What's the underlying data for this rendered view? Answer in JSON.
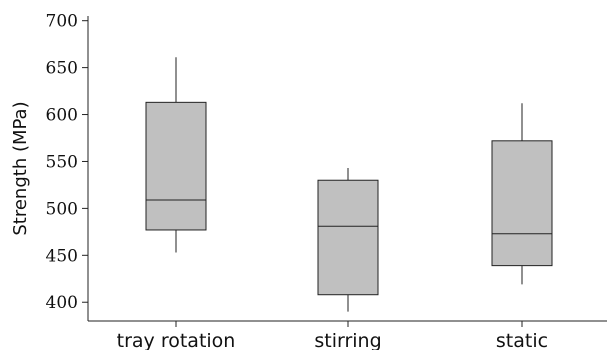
{
  "chart_data": {
    "type": "box",
    "ylabel": "Strength (MPa)",
    "xlabel": "",
    "ylim": [
      380,
      705
    ],
    "yticks": [
      400,
      450,
      500,
      550,
      600,
      650,
      700
    ],
    "grid": false,
    "categories": [
      "tray rotation",
      "stirring",
      "static"
    ],
    "boxes": [
      {
        "category": "tray rotation",
        "whisker_low": 453,
        "q1": 477,
        "median": 509,
        "q3": 613,
        "whisker_high": 661
      },
      {
        "category": "stirring",
        "whisker_low": 390,
        "q1": 408,
        "median": 481,
        "q3": 530,
        "whisker_high": 543
      },
      {
        "category": "static",
        "whisker_low": 419,
        "q1": 439,
        "median": 473,
        "q3": 572,
        "whisker_high": 612
      }
    ],
    "colors": {
      "box_fill": "#c0c0c0",
      "line": "#222222"
    }
  }
}
